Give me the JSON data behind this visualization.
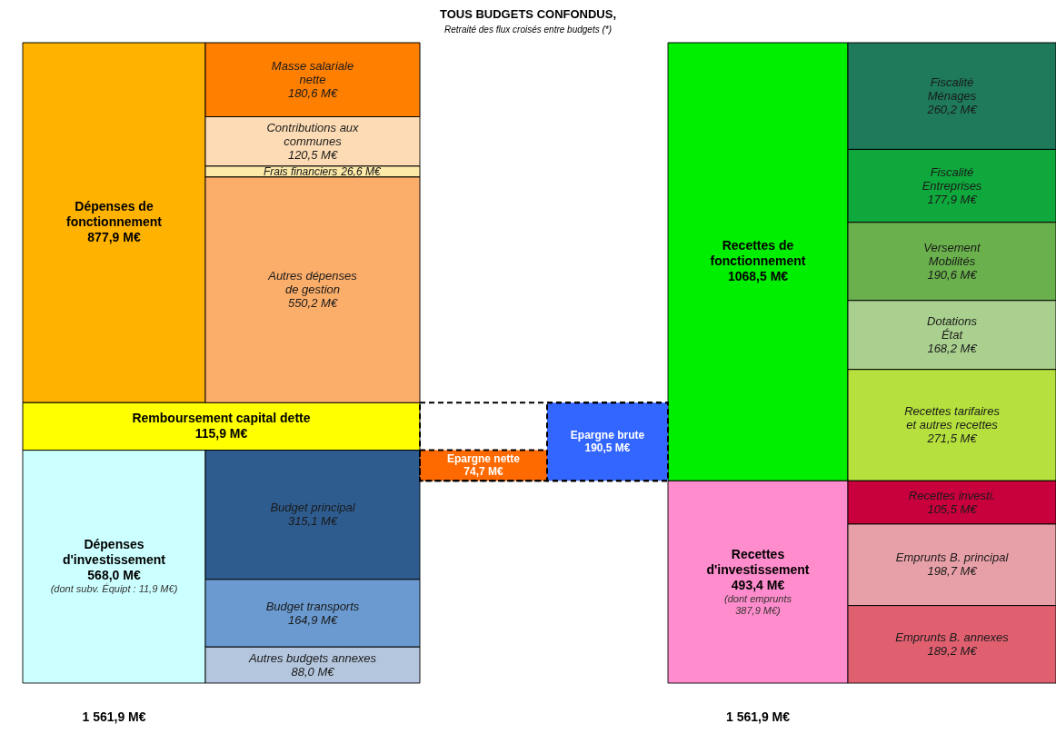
{
  "chart_data": {
    "type": "other",
    "title": "TOUS BUDGETS CONFONDUS,",
    "subtitle": "Retraité des flux croisés entre budgets (*)",
    "categories": [
      "Dépenses de\nfonctionnement",
      "Remboursement capital dette",
      "Dépenses\nd'investissement",
      "Masse salariale\nnette",
      "Contributions aux\ncommunes",
      "Frais financiers",
      "Autres dépenses\nde gestion",
      "Budget principal",
      "Budget transports",
      "Autres budgets annexes",
      "Epargne nette",
      "Epargne brute",
      "Recettes de\nfonctionnement",
      "Recettes\nd'investissement",
      "Fiscalité\nMénages",
      "Fiscalité\nEntreprises",
      "Versement\nMobilités",
      "Dotations\nÉtat",
      "Recettes tarifaires\net autres recettes",
      "Recettes investi.",
      "Emprunts B. principal",
      "Emprunts B. annexes"
    ],
    "values": [
      877.9,
      115.9,
      568.0,
      180.6,
      120.5,
      26.6,
      550.2,
      315.1,
      164.9,
      88.0,
      74.7,
      190.5,
      1068.5,
      493.4,
      260.2,
      177.9,
      190.6,
      168.2,
      271.5,
      105.5,
      198.7,
      189.2
    ],
    "value_labels": [
      "877,9 M€",
      "115,9 M€",
      "568,0 M€",
      "180,6 M€",
      "120,5 M€",
      "26,6 M€",
      "550,2 M€",
      "315,1 M€",
      "164,9 M€",
      "88,0 M€",
      "74,7 M€",
      "190,5 M€",
      "1068,5 M€",
      "493,4 M€",
      "260,2 M€",
      "177,9 M€",
      "190,6 M€",
      "168,2 M€",
      "271,5 M€",
      "105,5 M€",
      "198,7 M€",
      "189,2 M€"
    ],
    "colors": [
      "#ffb300",
      "#ffff00",
      "#ccffff",
      "#ff7f00",
      "#fddcb5",
      "#fde9a8",
      "#fbad6a",
      "#2e5c8f",
      "#6a9ad0",
      "#b4c6de",
      "#ff6a00",
      "#3366ff",
      "#00ee00",
      "#ff8ccc",
      "#1e7a5a",
      "#0fa83c",
      "#6ab04c",
      "#a9d08e",
      "#b5e03d",
      "#c8003c",
      "#e8a0a8",
      "#e06070"
    ],
    "annotations": [
      "(dont subv. Équipt : 11,9 M€)",
      "(dont emprunts\n387,9 M€)"
    ],
    "totals": [
      "1 561,9 M€",
      "1 561,9 M€"
    ]
  }
}
